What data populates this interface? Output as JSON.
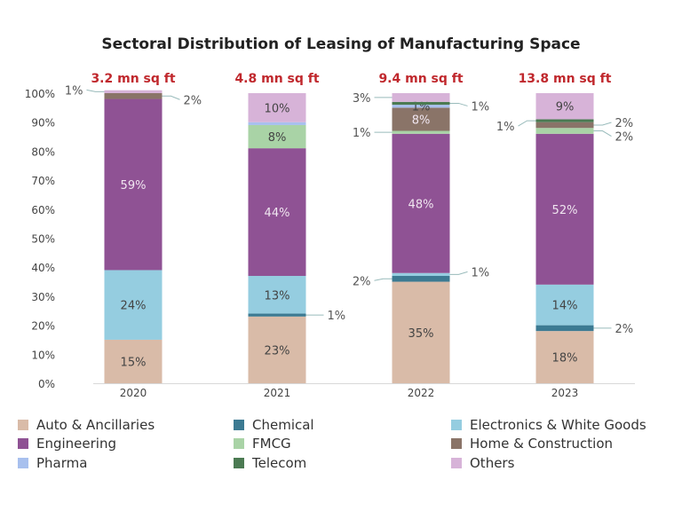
{
  "chart_data": {
    "type": "bar",
    "stacked": true,
    "title": "Sectoral Distribution of Leasing of Manufacturing Space",
    "categories": [
      "2020",
      "2021",
      "2022",
      "2023"
    ],
    "totals": [
      "3.2 mn sq ft",
      "4.8 mn sq ft",
      "9.4 mn sq ft",
      "13.8 mn sq ft"
    ],
    "ylim": [
      0,
      100
    ],
    "yticks": [
      "0%",
      "10%",
      "20%",
      "30%",
      "40%",
      "50%",
      "60%",
      "70%",
      "80%",
      "90%",
      "100%"
    ],
    "legend_position": "bottom",
    "grid": false,
    "series": [
      {
        "name": "Auto & Ancillaries",
        "color": "#d9bba8",
        "values": [
          15,
          23,
          35,
          18
        ]
      },
      {
        "name": "Chemical",
        "color": "#3c7a92",
        "values": [
          0,
          1,
          2,
          2
        ]
      },
      {
        "name": "Electronics & White Goods",
        "color": "#95cde0",
        "values": [
          24,
          13,
          1,
          14
        ]
      },
      {
        "name": "Engineering",
        "color": "#8f5294",
        "values": [
          59,
          44,
          48,
          52
        ]
      },
      {
        "name": "FMCG",
        "color": "#a9d3a6",
        "values": [
          0,
          8,
          1,
          2
        ]
      },
      {
        "name": "Home & Construction",
        "color": "#8a7468",
        "values": [
          2,
          0,
          8,
          2
        ]
      },
      {
        "name": "Pharma",
        "color": "#a8c0ee",
        "values": [
          0,
          1,
          1,
          0
        ]
      },
      {
        "name": "Telecom",
        "color": "#4b7a52",
        "values": [
          0,
          0,
          1,
          1
        ]
      },
      {
        "name": "Others",
        "color": "#d7b3d8",
        "values": [
          1,
          10,
          3,
          9
        ]
      }
    ],
    "unlabeled": [
      [
        1,
        6
      ]
    ]
  }
}
